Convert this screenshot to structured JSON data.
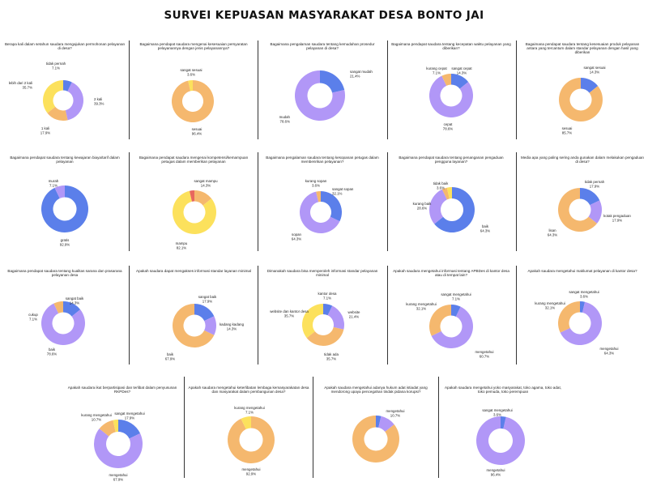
{
  "page_title": "SURVEI KEPUASAN MASYARAKAT DESA BONTO JAI",
  "colors": {
    "blue": "#5B7FEA",
    "purple": "#B197F7",
    "orange": "#F5B86E",
    "yellow": "#FCE15C",
    "red": "#E8675E"
  },
  "chart_data": [
    {
      "type": "pie",
      "donut": true,
      "title": "Berapa kali dalam setahun saudara mengajukan permohonan pelayanan di desa?",
      "slices": [
        {
          "label": "tidak pernah",
          "value_label": "7.1%",
          "value": 7.1,
          "color": "#5B7FEA"
        },
        {
          "label": "2 kali",
          "value_label": "39.3%",
          "value": 39.3,
          "color": "#B197F7"
        },
        {
          "label": "1 kali",
          "value_label": "17.9%",
          "value": 17.9,
          "color": "#F5B86E"
        },
        {
          "label": "lebih dari 2 kali",
          "value_label": "35.7%",
          "value": 35.7,
          "color": "#FCE15C"
        }
      ]
    },
    {
      "type": "pie",
      "donut": true,
      "title": "Bagaimana pendapat saudara mengenai kesesuaian persyaratan pelayanannya dengan jenis pelayanannya?",
      "slices": [
        {
          "label": "sesuai",
          "value_label": "96.4%",
          "value": 96.4,
          "color": "#F5B86E"
        },
        {
          "label": "sangat sesuai",
          "value_label": "3.6%",
          "value": 3.6,
          "color": "#FCE15C"
        }
      ]
    },
    {
      "type": "pie",
      "donut": true,
      "title": "Bagaimana pengalaman saudara tentang kemudahan prosedur pelayanan di desa?",
      "slices": [
        {
          "label": "sangat mudah",
          "value_label": "21.4%",
          "value": 21.4,
          "color": "#5B7FEA"
        },
        {
          "label": "mudah",
          "value_label": "78.6%",
          "value": 78.6,
          "color": "#B197F7"
        }
      ]
    },
    {
      "type": "pie",
      "donut": true,
      "title": "Bagaimana pendapat saudara tentang kecepatan waktu pelayanan yang diberikan?",
      "slices": [
        {
          "label": "sangat cepat",
          "value_label": "14.3%",
          "value": 14.3,
          "color": "#5B7FEA"
        },
        {
          "label": "cepat",
          "value_label": "78.6%",
          "value": 78.6,
          "color": "#B197F7"
        },
        {
          "label": "kurang cepat",
          "value_label": "7.1%",
          "value": 7.1,
          "color": "#F5B86E"
        }
      ]
    },
    {
      "type": "pie",
      "donut": true,
      "title": "Bagaimana pendapat saudara tentang kesesuaian produk pelayanan antara yang tercantum dalam standar pelayanan dengan hasil yang diberikan",
      "slices": [
        {
          "label": "sangat sesuai",
          "value_label": "14.3%",
          "value": 14.3,
          "color": "#5B7FEA"
        },
        {
          "label": "sesuai",
          "value_label": "85.7%",
          "value": 85.7,
          "color": "#F5B86E"
        }
      ]
    },
    {
      "type": "pie",
      "donut": true,
      "title": "Bagaimana pendapat saudara tentang kewajaran biaya/tarif dalam pelayanan",
      "slices": [
        {
          "label": "gratis",
          "value_label": "92.9%",
          "value": 92.9,
          "color": "#5B7FEA"
        },
        {
          "label": "murah",
          "value_label": "7.1%",
          "value": 7.1,
          "color": "#B197F7"
        }
      ]
    },
    {
      "type": "pie",
      "donut": true,
      "title": "Bagaimana pendapat saudara mengenai kompetensi/kemampuan petugas dalam memberikan pelayanan",
      "slices": [
        {
          "label": "sangat mampu",
          "value_label": "14.3%",
          "value": 14.3,
          "color": "#F5B86E"
        },
        {
          "label": "mampu",
          "value_label": "82.1%",
          "value": 82.1,
          "color": "#FCE15C"
        },
        {
          "label": "",
          "value_label": "",
          "value": 3.6,
          "color": "#E8675E"
        }
      ]
    },
    {
      "type": "pie",
      "donut": true,
      "title": "Bagaimana pengalaman saudara tentang kesopanan petugas dalam membenrikan pelayanan?",
      "slices": [
        {
          "label": "sangat sopan",
          "value_label": "32.1%",
          "value": 32.1,
          "color": "#5B7FEA"
        },
        {
          "label": "sopan",
          "value_label": "64.3%",
          "value": 64.3,
          "color": "#B197F7"
        },
        {
          "label": "kurang sopan",
          "value_label": "3.6%",
          "value": 3.6,
          "color": "#F5B86E"
        }
      ]
    },
    {
      "type": "pie",
      "donut": true,
      "title": "Bagaimana pendapat saudara tentang penanganan pengaduan pengguna layanan?",
      "slices": [
        {
          "label": "baik",
          "value_label": "64.3%",
          "value": 64.3,
          "color": "#5B7FEA"
        },
        {
          "label": "kurang baik",
          "value_label": "28.6%",
          "value": 28.6,
          "color": "#B197F7"
        },
        {
          "label": "tidak baik",
          "value_label": "3.6%",
          "value": 3.6,
          "color": "#F5B86E"
        },
        {
          "label": "",
          "value_label": "",
          "value": 3.6,
          "color": "#FCE15C"
        }
      ]
    },
    {
      "type": "pie",
      "donut": true,
      "title": "Media apa yang paling sering anda gunakan dalam melakukan pengaduan di desa?",
      "slices": [
        {
          "label": "tidak pernah",
          "value_label": "17.9%",
          "value": 17.9,
          "color": "#5B7FEA"
        },
        {
          "label": "kotak pengaduan",
          "value_label": "17.9%",
          "value": 17.9,
          "color": "#B197F7"
        },
        {
          "label": "lisan",
          "value_label": "64.3%",
          "value": 64.3,
          "color": "#F5B86E"
        }
      ]
    },
    {
      "type": "pie",
      "donut": true,
      "title": "Bagaimana pendapat saudara tentang kualitas sarana dan prasarana pelayanan desa",
      "slices": [
        {
          "label": "sangat baik",
          "value_label": "14.3%",
          "value": 14.3,
          "color": "#5B7FEA"
        },
        {
          "label": "baik",
          "value_label": "78.6%",
          "value": 78.6,
          "color": "#B197F7"
        },
        {
          "label": "cukup",
          "value_label": "7.1%",
          "value": 7.1,
          "color": "#F5B86E"
        }
      ]
    },
    {
      "type": "pie",
      "donut": true,
      "title": "Apakah saudara dapat mengakses informasi standar layanan minimal",
      "slices": [
        {
          "label": "sangat baik",
          "value_label": "17.9%",
          "value": 17.9,
          "color": "#5B7FEA"
        },
        {
          "label": "kadang kadang",
          "value_label": "14.3%",
          "value": 14.3,
          "color": "#B197F7"
        },
        {
          "label": "baik",
          "value_label": "67.9%",
          "value": 67.9,
          "color": "#F5B86E"
        }
      ]
    },
    {
      "type": "pie",
      "donut": true,
      "title": "Dimanakah saudara bisa memperoleh informasi standar pelayanan minimal",
      "slices": [
        {
          "label": "kantor desa",
          "value_label": "7.1%",
          "value": 7.1,
          "color": "#5B7FEA"
        },
        {
          "label": "website",
          "value_label": "21.4%",
          "value": 21.4,
          "color": "#B197F7"
        },
        {
          "label": "tidak ada",
          "value_label": "35.7%",
          "value": 35.7,
          "color": "#F5B86E"
        },
        {
          "label": "website dan kantor desa",
          "value_label": "35.7%",
          "value": 35.7,
          "color": "#FCE15C"
        }
      ]
    },
    {
      "type": "pie",
      "donut": true,
      "title": "Apakah saudara mengetahui informasi tentang APBDes di kantor desa atau di tempat lain?",
      "slices": [
        {
          "label": "sangat mengetahui",
          "value_label": "7.1%",
          "value": 7.1,
          "color": "#5B7FEA"
        },
        {
          "label": "mengetahui",
          "value_label": "60.7%",
          "value": 60.7,
          "color": "#B197F7"
        },
        {
          "label": "kurang mengetahui",
          "value_label": "32.1%",
          "value": 32.1,
          "color": "#F5B86E"
        }
      ]
    },
    {
      "type": "pie",
      "donut": true,
      "title": "Apakah saudara mengetahui maklumat pelayanan di kantor desa?",
      "slices": [
        {
          "label": "sangat mengetahui",
          "value_label": "3.6%",
          "value": 3.6,
          "color": "#5B7FEA"
        },
        {
          "label": "mengetahui",
          "value_label": "64.3%",
          "value": 64.3,
          "color": "#B197F7"
        },
        {
          "label": "kurang mengetahui",
          "value_label": "32.1%",
          "value": 32.1,
          "color": "#F5B86E"
        }
      ]
    },
    {
      "type": "pie",
      "donut": true,
      "title": "Apakah saudara ikut berpartisipasi dan terlibat dalam penyusunan RKPDes?",
      "slices": [
        {
          "label": "sangat mengetahui",
          "value_label": "17.9%",
          "value": 17.9,
          "color": "#5B7FEA"
        },
        {
          "label": "mengetahui",
          "value_label": "67.9%",
          "value": 67.9,
          "color": "#B197F7"
        },
        {
          "label": "kurang mengetahui",
          "value_label": "10.7%",
          "value": 10.7,
          "color": "#F5B86E"
        },
        {
          "label": "",
          "value_label": "",
          "value": 3.5,
          "color": "#FCE15C"
        }
      ]
    },
    {
      "type": "pie",
      "donut": true,
      "title": "Apakah saudara mengetahui keterlibatan lembaga kemasyarakatan desa dan masyarakat dalam pembangunan desa?",
      "slices": [
        {
          "label": "mengetahui",
          "value_label": "92.9%",
          "value": 92.9,
          "color": "#F5B86E"
        },
        {
          "label": "kurang mengetahui",
          "value_label": "7.1%",
          "value": 7.1,
          "color": "#FCE15C"
        }
      ]
    },
    {
      "type": "pie",
      "donut": true,
      "title": "Apakah saudara mengetahui adanya hukum adat istiadat yang mendorong upaya pencegahan tindak pidana korupsi?",
      "slices": [
        {
          "label": "",
          "value_label": "",
          "value": 3.6,
          "color": "#5B7FEA"
        },
        {
          "label": "mengetahui",
          "value_label": "10.7%",
          "value": 10.7,
          "color": "#B197F7"
        },
        {
          "label": "mengetahui",
          "value_label": "85.7%",
          "value": 85.7,
          "color": "#F5B86E"
        }
      ]
    },
    {
      "type": "pie",
      "donut": true,
      "title": "Apakah saudara mengetahui yoko masyarakat, toko agama, toko adat, toko pemuda, toko perempuan",
      "slices": [
        {
          "label": "sangat mengetahui",
          "value_label": "3.6%",
          "value": 3.6,
          "color": "#5B7FEA"
        },
        {
          "label": "mengetahui",
          "value_label": "96.4%",
          "value": 96.4,
          "color": "#B197F7"
        }
      ]
    }
  ]
}
